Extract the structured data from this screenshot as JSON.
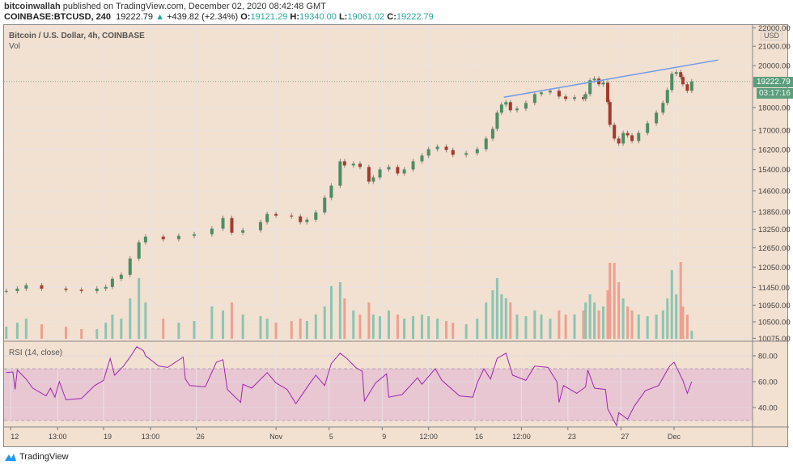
{
  "header": {
    "author": "bitcoinwallah",
    "published": " published on TradingView.com, December 02, 2020 08:42:48 GMT",
    "symbol": "COINBASE:BTCUSD, 240",
    "last": "19222.79",
    "change": "+439.82 (+2.34%)",
    "open_label": "O:",
    "open": "19121.29",
    "high_label": "H:",
    "high": "19340.00",
    "low_label": "L:",
    "low": "19061.02",
    "close_label": "C:",
    "close": "19222.79"
  },
  "main_pane": {
    "title": "Bitcoin / U.S. Dollar, 4h, COINBASE",
    "volume_label": "Vol",
    "currency": "USD"
  },
  "rsi_pane": {
    "title": "RSI (14, close)"
  },
  "price_label": {
    "value": "19222.79",
    "countdown": "03:17:16"
  },
  "footer": {
    "brand": "TradingView"
  },
  "colors": {
    "background": "#f2e0d0",
    "up": "#4e8c63",
    "down": "#a33a2e",
    "vol_up": "#8cc4b2",
    "vol_down": "#ee9f90",
    "rsi_line": "#9c27b0",
    "rsi_band": "#e8c6d2",
    "trendline": "#6f9ae8",
    "price_tag": "#5a9e7c"
  },
  "chart_data": [
    {
      "type": "candlestick",
      "title": "Bitcoin / U.S. Dollar, 4h, COINBASE",
      "y_scale": "log",
      "ylim": [
        10000,
        22150
      ],
      "xlim": [
        "2020-10-11 12:00",
        "2020-12-06 22:00"
      ],
      "grid": true,
      "y_ticks": [
        "22000.00",
        "21000.00",
        "20000.00",
        "18000.00",
        "17000.00",
        "16200.00",
        "15400.00",
        "14600.00",
        "13850.00",
        "13250.00",
        "12650.00",
        "12050.00",
        "11450.00",
        "10950.00",
        "10500.00",
        "10075.00"
      ],
      "x_ticks": [
        {
          "t": "2020-10-12 00:00",
          "label": "12"
        },
        {
          "t": "2020-10-15 13:00",
          "label": "13:00"
        },
        {
          "t": "2020-10-19 00:00",
          "label": "19"
        },
        {
          "t": "2020-10-22 13:00",
          "label": "13:00"
        },
        {
          "t": "2020-10-26 00:00",
          "label": "26"
        },
        {
          "t": "2020-11-01 00:00",
          "label": "Nov"
        },
        {
          "t": "2020-11-05 00:00",
          "label": "5"
        },
        {
          "t": "2020-11-09 00:00",
          "label": "9"
        },
        {
          "t": "2020-11-12 12:00",
          "label": "12:00"
        },
        {
          "t": "2020-11-16 00:00",
          "label": "16"
        },
        {
          "t": "2020-11-19 12:00",
          "label": "12:00"
        },
        {
          "t": "2020-11-23 00:00",
          "label": "23"
        },
        {
          "t": "2020-11-27 00:00",
          "label": "27"
        },
        {
          "t": "2020-12-01 00:00",
          "label": "Dec"
        }
      ],
      "columns": [
        "time",
        "close",
        "volume_relative"
      ],
      "points": [
        [
          "2020-10-11 16:00",
          11346,
          15
        ],
        [
          "2020-10-12 12:00",
          11416,
          20
        ],
        [
          "2020-10-13 04:00",
          11510,
          25
        ],
        [
          "2020-10-14 08:00",
          11416,
          18
        ],
        [
          "2020-10-16 04:00",
          11380,
          15
        ],
        [
          "2020-10-17 08:00",
          11346,
          12
        ],
        [
          "2020-10-18 12:00",
          11416,
          12
        ],
        [
          "2020-10-19 04:00",
          11464,
          20
        ],
        [
          "2020-10-19 16:00",
          11700,
          30
        ],
        [
          "2020-10-20 08:00",
          11820,
          25
        ],
        [
          "2020-10-21 00:00",
          12312,
          50
        ],
        [
          "2020-10-21 16:00",
          12824,
          75
        ],
        [
          "2020-10-22 04:00",
          13008,
          45
        ],
        [
          "2020-10-23 12:00",
          12928,
          25
        ],
        [
          "2020-10-24 16:00",
          13036,
          20
        ],
        [
          "2020-10-25 20:00",
          13088,
          22
        ],
        [
          "2020-10-27 04:00",
          13276,
          40
        ],
        [
          "2020-10-28 00:00",
          13632,
          35
        ],
        [
          "2020-10-28 16:00",
          13140,
          45
        ],
        [
          "2020-10-29 12:00",
          13222,
          30
        ],
        [
          "2020-10-30 20:00",
          13494,
          28
        ],
        [
          "2020-10-31 08:00",
          13772,
          25
        ],
        [
          "2020-11-01 00:00",
          13716,
          20
        ],
        [
          "2020-11-02 04:00",
          13688,
          22
        ],
        [
          "2020-11-02 20:00",
          13494,
          25
        ],
        [
          "2020-11-03 08:00",
          13576,
          22
        ],
        [
          "2020-11-04 00:00",
          13828,
          30
        ],
        [
          "2020-11-04 16:00",
          14346,
          40
        ],
        [
          "2020-11-05 04:00",
          14790,
          65
        ],
        [
          "2020-11-05 20:00",
          15724,
          70
        ],
        [
          "2020-11-06 04:00",
          15564,
          50
        ],
        [
          "2020-11-06 20:00",
          15628,
          35
        ],
        [
          "2020-11-07 08:00",
          15500,
          30
        ],
        [
          "2020-11-08 00:00",
          14942,
          45
        ],
        [
          "2020-11-08 08:00",
          15096,
          30
        ],
        [
          "2020-11-08 20:00",
          15406,
          28
        ],
        [
          "2020-11-09 12:00",
          15500,
          35
        ],
        [
          "2020-11-10 04:00",
          15250,
          30
        ],
        [
          "2020-11-10 16:00",
          15406,
          25
        ],
        [
          "2020-11-11 08:00",
          15724,
          28
        ],
        [
          "2020-11-12 00:00",
          15950,
          30
        ],
        [
          "2020-11-12 12:00",
          16212,
          28
        ],
        [
          "2020-11-13 04:00",
          16310,
          25
        ],
        [
          "2020-11-13 20:00",
          16178,
          22
        ],
        [
          "2020-11-14 08:00",
          15982,
          20
        ],
        [
          "2020-11-15 08:00",
          16048,
          18
        ],
        [
          "2020-11-16 04:00",
          16212,
          25
        ],
        [
          "2020-11-16 20:00",
          16648,
          45
        ],
        [
          "2020-11-17 08:00",
          17060,
          60
        ],
        [
          "2020-11-17 16:00",
          17770,
          75
        ],
        [
          "2020-11-18 00:00",
          18136,
          55
        ],
        [
          "2020-11-18 08:00",
          18248,
          50
        ],
        [
          "2020-11-18 16:00",
          17880,
          45
        ],
        [
          "2020-11-19 04:00",
          17952,
          30
        ],
        [
          "2020-11-19 20:00",
          18210,
          28
        ],
        [
          "2020-11-20 12:00",
          18622,
          35
        ],
        [
          "2020-11-21 00:00",
          18698,
          30
        ],
        [
          "2020-11-21 16:00",
          18776,
          25
        ],
        [
          "2020-11-22 08:00",
          18508,
          35
        ],
        [
          "2020-11-22 20:00",
          18396,
          30
        ],
        [
          "2020-11-23 12:00",
          18472,
          30
        ],
        [
          "2020-11-24 04:00",
          18396,
          35
        ],
        [
          "2020-11-24 08:00",
          18622,
          45
        ],
        [
          "2020-11-24 16:00",
          19280,
          55
        ],
        [
          "2020-11-25 00:00",
          19358,
          45
        ],
        [
          "2020-11-25 08:00",
          19084,
          35
        ],
        [
          "2020-11-25 16:00",
          19162,
          40
        ],
        [
          "2020-11-26 00:00",
          18248,
          60
        ],
        [
          "2020-11-26 04:00",
          17234,
          94
        ],
        [
          "2020-11-26 12:00",
          16648,
          94
        ],
        [
          "2020-11-26 20:00",
          16446,
          70
        ],
        [
          "2020-11-27 04:00",
          16886,
          50
        ],
        [
          "2020-11-27 12:00",
          16784,
          40
        ],
        [
          "2020-11-27 20:00",
          16546,
          35
        ],
        [
          "2020-11-28 08:00",
          16886,
          30
        ],
        [
          "2020-11-29 00:00",
          17304,
          28
        ],
        [
          "2020-11-29 16:00",
          17770,
          30
        ],
        [
          "2020-11-30 04:00",
          18210,
          35
        ],
        [
          "2020-11-30 12:00",
          18812,
          50
        ],
        [
          "2020-11-30 20:00",
          19596,
          85
        ],
        [
          "2020-12-01 04:00",
          19676,
          55
        ],
        [
          "2020-12-01 12:00",
          19438,
          95
        ],
        [
          "2020-12-01 16:00",
          19084,
          40
        ],
        [
          "2020-12-02 00:00",
          18776,
          30
        ],
        [
          "2020-12-02 08:00",
          19222.79,
          10
        ]
      ],
      "trendline": [
        [
          "2020-11-18 04:00",
          18472
        ],
        [
          "2020-12-04 08:00",
          20287
        ]
      ],
      "last_price": 19222.79
    },
    {
      "type": "line",
      "title": "RSI (14, close)",
      "ylim": [
        25,
        91.25
      ],
      "y_ticks": [
        "80.00",
        "60.00",
        "40.00"
      ],
      "band": [
        30,
        70
      ],
      "points": [
        [
          "2020-10-11 16:00",
          67
        ],
        [
          "2020-10-12 04:00",
          67.5
        ],
        [
          "2020-10-12 08:00",
          54
        ],
        [
          "2020-10-12 12:00",
          69
        ],
        [
          "2020-10-13 04:00",
          62
        ],
        [
          "2020-10-13 16:00",
          55
        ],
        [
          "2020-10-14 16:00",
          49
        ],
        [
          "2020-10-15 00:00",
          55
        ],
        [
          "2020-10-15 08:00",
          48
        ],
        [
          "2020-10-15 16:00",
          60
        ],
        [
          "2020-10-16 04:00",
          46
        ],
        [
          "2020-10-17 08:00",
          47
        ],
        [
          "2020-10-18 08:00",
          57
        ],
        [
          "2020-10-19 00:00",
          61
        ],
        [
          "2020-10-19 12:00",
          78
        ],
        [
          "2020-10-19 20:00",
          65
        ],
        [
          "2020-10-20 12:00",
          72
        ],
        [
          "2020-10-21 00:00",
          79
        ],
        [
          "2020-10-21 12:00",
          87
        ],
        [
          "2020-10-22 00:00",
          84
        ],
        [
          "2020-10-22 04:00",
          80
        ],
        [
          "2020-10-23 04:00",
          72
        ],
        [
          "2020-10-23 20:00",
          71
        ],
        [
          "2020-10-25 00:00",
          79
        ],
        [
          "2020-10-25 04:00",
          62
        ],
        [
          "2020-10-25 12:00",
          57
        ],
        [
          "2020-10-26 16:00",
          56
        ],
        [
          "2020-10-27 12:00",
          75
        ],
        [
          "2020-10-28 00:00",
          77
        ],
        [
          "2020-10-28 08:00",
          54
        ],
        [
          "2020-10-29 08:00",
          44
        ],
        [
          "2020-10-29 12:00",
          58
        ],
        [
          "2020-10-30 04:00",
          55
        ],
        [
          "2020-10-31 08:00",
          67
        ],
        [
          "2020-11-01 00:00",
          59
        ],
        [
          "2020-11-01 20:00",
          54
        ],
        [
          "2020-11-02 12:00",
          43
        ],
        [
          "2020-11-03 12:00",
          58
        ],
        [
          "2020-11-04 00:00",
          65
        ],
        [
          "2020-11-04 16:00",
          57
        ],
        [
          "2020-11-05 04:00",
          74
        ],
        [
          "2020-11-05 20:00",
          82
        ],
        [
          "2020-11-06 08:00",
          78
        ],
        [
          "2020-11-07 00:00",
          71
        ],
        [
          "2020-11-07 12:00",
          68
        ],
        [
          "2020-11-07 16:00",
          45
        ],
        [
          "2020-11-08 12:00",
          59
        ],
        [
          "2020-11-09 08:00",
          66
        ],
        [
          "2020-11-09 12:00",
          48
        ],
        [
          "2020-11-10 12:00",
          50
        ],
        [
          "2020-11-11 16:00",
          63
        ],
        [
          "2020-11-12 00:00",
          58
        ],
        [
          "2020-11-13 00:00",
          70
        ],
        [
          "2020-11-13 12:00",
          61
        ],
        [
          "2020-11-14 20:00",
          49
        ],
        [
          "2020-11-15 20:00",
          48
        ],
        [
          "2020-11-16 04:00",
          59
        ],
        [
          "2020-11-16 16:00",
          70
        ],
        [
          "2020-11-17 04:00",
          62
        ],
        [
          "2020-11-17 16:00",
          78
        ],
        [
          "2020-11-18 08:00",
          82
        ],
        [
          "2020-11-18 20:00",
          65
        ],
        [
          "2020-11-19 20:00",
          61
        ],
        [
          "2020-11-20 12:00",
          72
        ],
        [
          "2020-11-21 12:00",
          71
        ],
        [
          "2020-11-22 04:00",
          60
        ],
        [
          "2020-11-22 08:00",
          44
        ],
        [
          "2020-11-22 16:00",
          57
        ],
        [
          "2020-11-23 16:00",
          51
        ],
        [
          "2020-11-24 08:00",
          56
        ],
        [
          "2020-11-24 12:00",
          69
        ],
        [
          "2020-11-25 00:00",
          55
        ],
        [
          "2020-11-25 20:00",
          54
        ],
        [
          "2020-11-26 00:00",
          39
        ],
        [
          "2020-11-26 16:00",
          26
        ],
        [
          "2020-11-26 20:00",
          36
        ],
        [
          "2020-11-27 12:00",
          31
        ],
        [
          "2020-11-28 00:00",
          41
        ],
        [
          "2020-11-28 20:00",
          53
        ],
        [
          "2020-11-29 20:00",
          57
        ],
        [
          "2020-11-30 16:00",
          72
        ],
        [
          "2020-12-01 00:00",
          75
        ],
        [
          "2020-12-01 16:00",
          61
        ],
        [
          "2020-12-02 00:00",
          51
        ],
        [
          "2020-12-02 08:00",
          60
        ]
      ]
    }
  ]
}
